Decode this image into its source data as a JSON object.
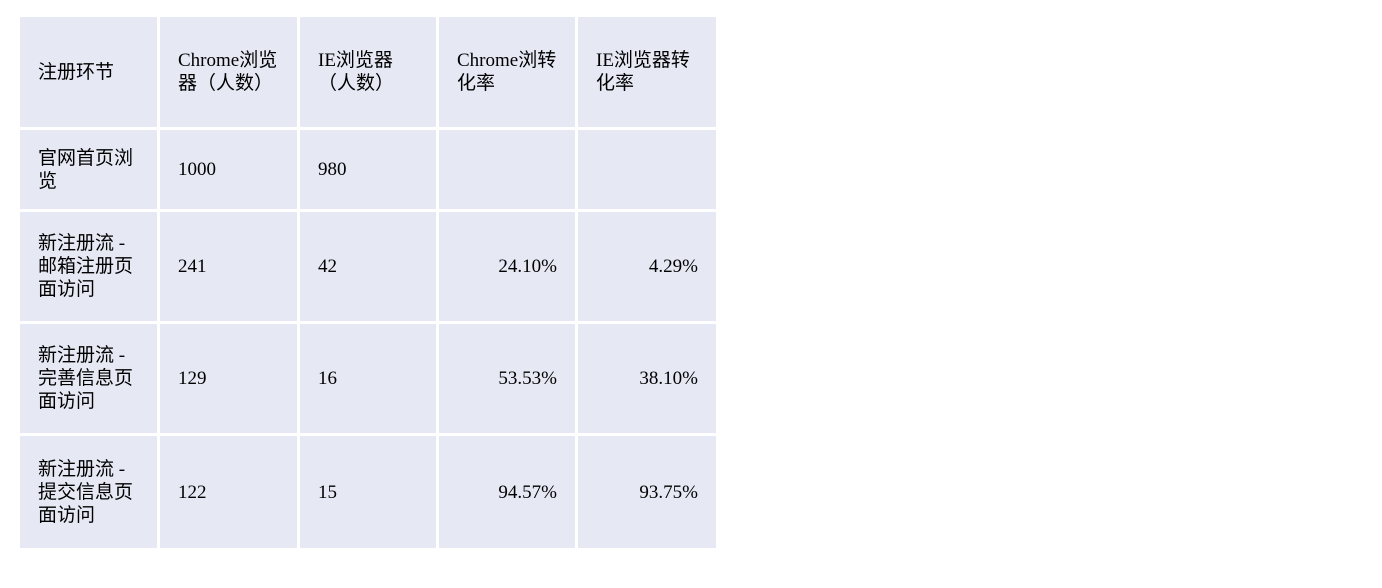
{
  "chart_data": {
    "type": "table",
    "columns": [
      "注册环节",
      "Chrome浏览器（人数）",
      "IE浏览器（人数）",
      "Chrome浏转化率",
      "IE浏览器转化率"
    ],
    "rows": [
      [
        "官网首页浏览",
        "1000",
        "980",
        "",
        ""
      ],
      [
        "新注册流 - 邮箱注册页面访问",
        "241",
        "42",
        "24.10%",
        "4.29%"
      ],
      [
        "新注册流 - 完善信息页面访问",
        "129",
        "16",
        "53.53%",
        "38.10%"
      ],
      [
        "新注册流 - 提交信息页面访问",
        "122",
        "15",
        "94.57%",
        "93.75%"
      ]
    ]
  },
  "colors": {
    "cell_background": "#e6e8f4",
    "gridline": "#ffffff",
    "text": "#000000"
  }
}
